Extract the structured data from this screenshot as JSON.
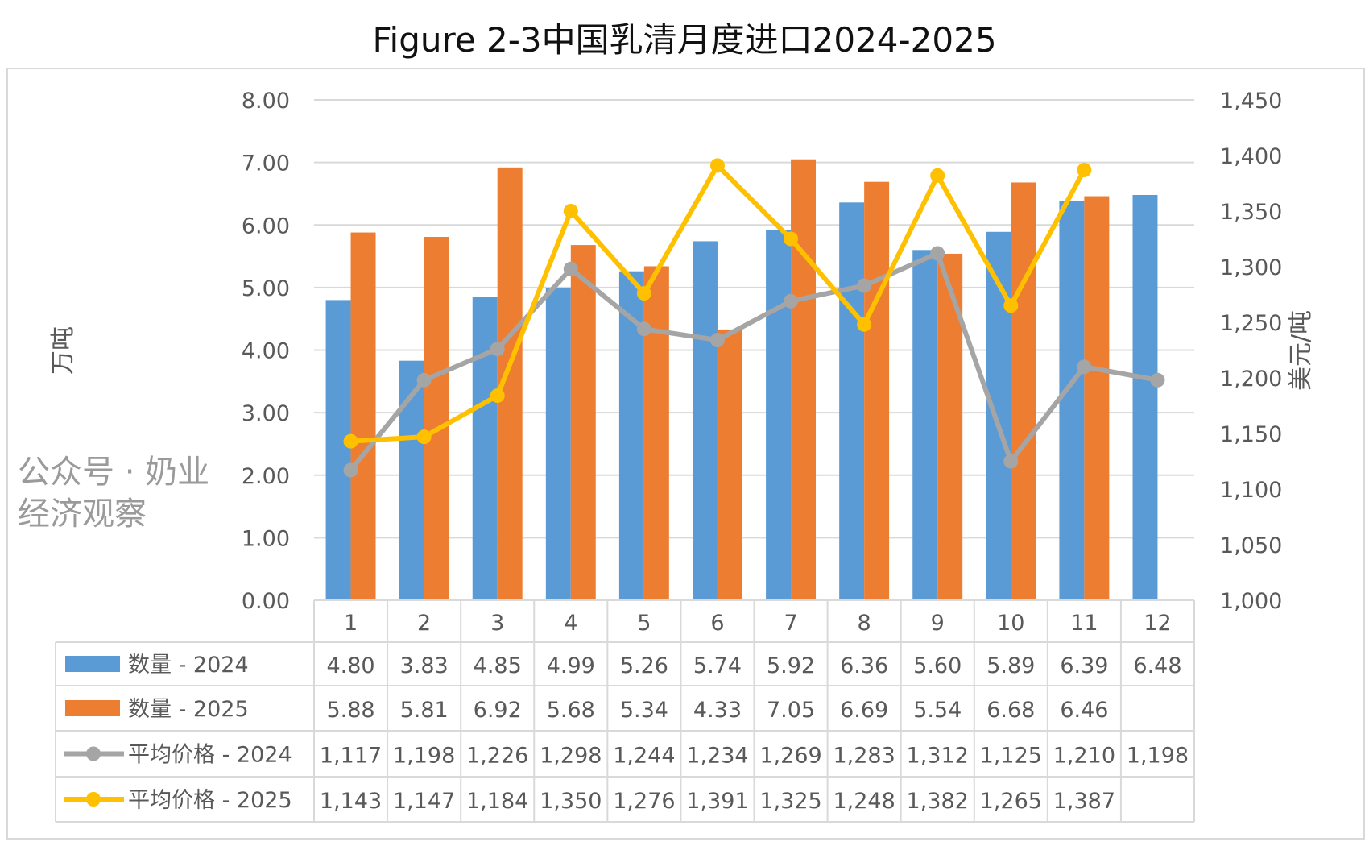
{
  "chart_data": {
    "type": "bar",
    "title": "Figure 2-3中国乳清月度进口2024-2025",
    "ylabel": "万吨",
    "y2label": "美元/吨",
    "ylim": [
      0,
      8
    ],
    "y2lim": [
      1000,
      1450
    ],
    "yticks": [
      "0.00",
      "1.00",
      "2.00",
      "3.00",
      "4.00",
      "5.00",
      "6.00",
      "7.00",
      "8.00"
    ],
    "y2ticks": [
      "1,000",
      "1,050",
      "1,100",
      "1,150",
      "1,200",
      "1,250",
      "1,300",
      "1,350",
      "1,400",
      "1,450"
    ],
    "grid": true,
    "legend": "data-table",
    "categories": [
      "1",
      "2",
      "3",
      "4",
      "5",
      "6",
      "7",
      "8",
      "9",
      "10",
      "11",
      "12"
    ],
    "series": [
      {
        "name": "数量 - 2024",
        "type": "bar",
        "axis": "left",
        "color": "#5B9BD5",
        "values": [
          4.8,
          3.83,
          4.85,
          4.99,
          5.26,
          5.74,
          5.92,
          6.36,
          5.6,
          5.89,
          6.39,
          6.48
        ],
        "labels": [
          "4.80",
          "3.83",
          "4.85",
          "4.99",
          "5.26",
          "5.74",
          "5.92",
          "6.36",
          "5.60",
          "5.89",
          "6.39",
          "6.48"
        ]
      },
      {
        "name": "数量 - 2025",
        "type": "bar",
        "axis": "left",
        "color": "#ED7D31",
        "values": [
          5.88,
          5.81,
          6.92,
          5.68,
          5.34,
          4.33,
          7.05,
          6.69,
          5.54,
          6.68,
          6.46,
          null
        ],
        "labels": [
          "5.88",
          "5.81",
          "6.92",
          "5.68",
          "5.34",
          "4.33",
          "7.05",
          "6.69",
          "5.54",
          "6.68",
          "6.46",
          ""
        ]
      },
      {
        "name": "平均价格 - 2024",
        "type": "line",
        "axis": "right",
        "color": "#A5A5A5",
        "values": [
          1117,
          1198,
          1226,
          1298,
          1244,
          1234,
          1269,
          1283,
          1312,
          1125,
          1210,
          1198
        ],
        "labels": [
          "1,117",
          "1,198",
          "1,226",
          "1,298",
          "1,244",
          "1,234",
          "1,269",
          "1,283",
          "1,312",
          "1,125",
          "1,210",
          "1,198"
        ]
      },
      {
        "name": "平均价格 - 2025",
        "type": "line",
        "axis": "right",
        "color": "#FFC000",
        "values": [
          1143,
          1147,
          1184,
          1350,
          1276,
          1391,
          1325,
          1248,
          1382,
          1265,
          1387,
          null
        ],
        "labels": [
          "1,143",
          "1,147",
          "1,184",
          "1,350",
          "1,276",
          "1,391",
          "1,325",
          "1,248",
          "1,382",
          "1,265",
          "1,387",
          ""
        ]
      }
    ],
    "watermark": "公众号 · 奶业经济观察"
  }
}
